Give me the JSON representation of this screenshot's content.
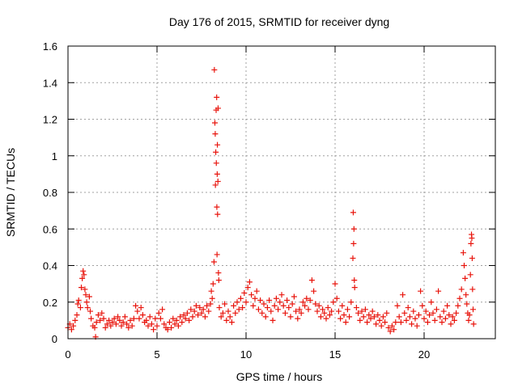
{
  "chart_data": {
    "type": "scatter",
    "title": "Day 176 of 2015, SRMTID for receiver dyng",
    "xlabel": "GPS time / hours",
    "ylabel": "SRMTID / TECUs",
    "xlim": [
      0,
      24
    ],
    "ylim": [
      0,
      1.6
    ],
    "x_ticks": [
      0,
      5,
      10,
      15,
      20
    ],
    "x_tick_labels": [
      "0",
      "5",
      "10",
      "15",
      "20"
    ],
    "y_ticks": [
      0,
      0.2,
      0.4,
      0.6,
      0.8,
      1.0,
      1.2,
      1.4,
      1.6
    ],
    "y_tick_labels": [
      "0",
      "0.2",
      "0.4",
      "0.6",
      "0.8",
      "1",
      "1.2",
      "1.4",
      "1.6"
    ],
    "grid": true,
    "marker": "plus",
    "color": "#e8140c",
    "series": [
      {
        "name": "SRMTID",
        "points": [
          [
            0.0,
            0.06
          ],
          [
            0.1,
            0.08
          ],
          [
            0.2,
            0.05
          ],
          [
            0.3,
            0.07
          ],
          [
            0.4,
            0.1
          ],
          [
            0.5,
            0.13
          ],
          [
            0.55,
            0.19
          ],
          [
            0.6,
            0.21
          ],
          [
            0.7,
            0.17
          ],
          [
            0.75,
            0.28
          ],
          [
            0.8,
            0.33
          ],
          [
            0.85,
            0.37
          ],
          [
            0.9,
            0.35
          ],
          [
            0.95,
            0.27
          ],
          [
            1.0,
            0.24
          ],
          [
            1.05,
            0.2
          ],
          [
            1.1,
            0.17
          ],
          [
            1.2,
            0.23
          ],
          [
            1.25,
            0.15
          ],
          [
            1.3,
            0.11
          ],
          [
            1.4,
            0.07
          ],
          [
            1.5,
            0.06
          ],
          [
            1.55,
            0.01
          ],
          [
            1.6,
            0.09
          ],
          [
            1.7,
            0.13
          ],
          [
            1.8,
            0.1
          ],
          [
            1.9,
            0.14
          ],
          [
            2.0,
            0.11
          ],
          [
            2.1,
            0.06
          ],
          [
            2.2,
            0.08
          ],
          [
            2.3,
            0.1
          ],
          [
            2.4,
            0.07
          ],
          [
            2.5,
            0.09
          ],
          [
            2.6,
            0.11
          ],
          [
            2.7,
            0.08
          ],
          [
            2.8,
            0.12
          ],
          [
            2.9,
            0.1
          ],
          [
            3.0,
            0.07
          ],
          [
            3.1,
            0.09
          ],
          [
            3.2,
            0.12
          ],
          [
            3.3,
            0.08
          ],
          [
            3.4,
            0.06
          ],
          [
            3.5,
            0.1
          ],
          [
            3.6,
            0.07
          ],
          [
            3.7,
            0.11
          ],
          [
            3.8,
            0.18
          ],
          [
            3.9,
            0.15
          ],
          [
            4.0,
            0.11
          ],
          [
            4.1,
            0.17
          ],
          [
            4.2,
            0.13
          ],
          [
            4.3,
            0.09
          ],
          [
            4.4,
            0.1
          ],
          [
            4.5,
            0.07
          ],
          [
            4.6,
            0.12
          ],
          [
            4.7,
            0.08
          ],
          [
            4.8,
            0.05
          ],
          [
            4.9,
            0.11
          ],
          [
            5.0,
            0.07
          ],
          [
            5.1,
            0.14
          ],
          [
            5.2,
            0.11
          ],
          [
            5.3,
            0.16
          ],
          [
            5.4,
            0.08
          ],
          [
            5.5,
            0.06
          ],
          [
            5.6,
            0.05
          ],
          [
            5.7,
            0.09
          ],
          [
            5.8,
            0.06
          ],
          [
            5.9,
            0.11
          ],
          [
            6.0,
            0.08
          ],
          [
            6.1,
            0.1
          ],
          [
            6.2,
            0.07
          ],
          [
            6.3,
            0.12
          ],
          [
            6.4,
            0.09
          ],
          [
            6.5,
            0.13
          ],
          [
            6.6,
            0.11
          ],
          [
            6.7,
            0.14
          ],
          [
            6.8,
            0.1
          ],
          [
            6.9,
            0.16
          ],
          [
            7.0,
            0.12
          ],
          [
            7.1,
            0.15
          ],
          [
            7.2,
            0.18
          ],
          [
            7.3,
            0.13
          ],
          [
            7.4,
            0.17
          ],
          [
            7.5,
            0.14
          ],
          [
            7.6,
            0.16
          ],
          [
            7.7,
            0.12
          ],
          [
            7.8,
            0.18
          ],
          [
            7.9,
            0.15
          ],
          [
            8.0,
            0.19
          ],
          [
            8.05,
            0.26
          ],
          [
            8.1,
            0.22
          ],
          [
            8.15,
            0.3
          ],
          [
            8.2,
            0.42
          ],
          [
            8.22,
            1.47
          ],
          [
            8.25,
            1.18
          ],
          [
            8.27,
            1.12
          ],
          [
            8.28,
            0.84
          ],
          [
            8.3,
            1.02
          ],
          [
            8.32,
            1.25
          ],
          [
            8.33,
            0.96
          ],
          [
            8.35,
            1.32
          ],
          [
            8.36,
            0.72
          ],
          [
            8.37,
            0.46
          ],
          [
            8.38,
            0.9
          ],
          [
            8.39,
            1.06
          ],
          [
            8.4,
            0.68
          ],
          [
            8.42,
            0.86
          ],
          [
            8.43,
            1.26
          ],
          [
            8.45,
            0.36
          ],
          [
            8.47,
            0.32
          ],
          [
            8.5,
            0.17
          ],
          [
            8.6,
            0.12
          ],
          [
            8.7,
            0.14
          ],
          [
            8.8,
            0.19
          ],
          [
            8.9,
            0.1
          ],
          [
            9.0,
            0.15
          ],
          [
            9.1,
            0.12
          ],
          [
            9.2,
            0.09
          ],
          [
            9.3,
            0.18
          ],
          [
            9.4,
            0.14
          ],
          [
            9.5,
            0.2
          ],
          [
            9.6,
            0.16
          ],
          [
            9.7,
            0.22
          ],
          [
            9.8,
            0.17
          ],
          [
            9.9,
            0.25
          ],
          [
            10.0,
            0.2
          ],
          [
            10.1,
            0.28
          ],
          [
            10.2,
            0.31
          ],
          [
            10.3,
            0.24
          ],
          [
            10.4,
            0.18
          ],
          [
            10.5,
            0.22
          ],
          [
            10.6,
            0.26
          ],
          [
            10.7,
            0.16
          ],
          [
            10.8,
            0.21
          ],
          [
            10.9,
            0.14
          ],
          [
            11.0,
            0.19
          ],
          [
            11.1,
            0.12
          ],
          [
            11.2,
            0.17
          ],
          [
            11.3,
            0.21
          ],
          [
            11.4,
            0.15
          ],
          [
            11.5,
            0.1
          ],
          [
            11.6,
            0.18
          ],
          [
            11.7,
            0.22
          ],
          [
            11.8,
            0.16
          ],
          [
            11.9,
            0.2
          ],
          [
            12.0,
            0.24
          ],
          [
            12.1,
            0.18
          ],
          [
            12.2,
            0.14
          ],
          [
            12.3,
            0.21
          ],
          [
            12.4,
            0.17
          ],
          [
            12.5,
            0.12
          ],
          [
            12.6,
            0.19
          ],
          [
            12.7,
            0.23
          ],
          [
            12.8,
            0.15
          ],
          [
            12.9,
            0.11
          ],
          [
            13.0,
            0.16
          ],
          [
            13.1,
            0.14
          ],
          [
            13.2,
            0.2
          ],
          [
            13.3,
            0.18
          ],
          [
            13.4,
            0.22
          ],
          [
            13.5,
            0.16
          ],
          [
            13.6,
            0.21
          ],
          [
            13.7,
            0.32
          ],
          [
            13.8,
            0.26
          ],
          [
            13.9,
            0.19
          ],
          [
            14.0,
            0.15
          ],
          [
            14.1,
            0.18
          ],
          [
            14.2,
            0.12
          ],
          [
            14.3,
            0.16
          ],
          [
            14.4,
            0.14
          ],
          [
            14.5,
            0.11
          ],
          [
            14.6,
            0.17
          ],
          [
            14.7,
            0.13
          ],
          [
            14.8,
            0.15
          ],
          [
            14.9,
            0.2
          ],
          [
            15.0,
            0.3
          ],
          [
            15.1,
            0.22
          ],
          [
            15.2,
            0.15
          ],
          [
            15.3,
            0.11
          ],
          [
            15.4,
            0.18
          ],
          [
            15.5,
            0.13
          ],
          [
            15.6,
            0.09
          ],
          [
            15.7,
            0.16
          ],
          [
            15.8,
            0.12
          ],
          [
            15.9,
            0.2
          ],
          [
            16.0,
            0.44
          ],
          [
            16.02,
            0.69
          ],
          [
            16.04,
            0.52
          ],
          [
            16.06,
            0.6
          ],
          [
            16.08,
            0.32
          ],
          [
            16.1,
            0.28
          ],
          [
            16.2,
            0.17
          ],
          [
            16.3,
            0.14
          ],
          [
            16.4,
            0.1
          ],
          [
            16.5,
            0.15
          ],
          [
            16.6,
            0.12
          ],
          [
            16.7,
            0.16
          ],
          [
            16.8,
            0.09
          ],
          [
            16.9,
            0.13
          ],
          [
            17.0,
            0.11
          ],
          [
            17.1,
            0.15
          ],
          [
            17.2,
            0.12
          ],
          [
            17.3,
            0.08
          ],
          [
            17.4,
            0.13
          ],
          [
            17.5,
            0.1
          ],
          [
            17.6,
            0.07
          ],
          [
            17.7,
            0.12
          ],
          [
            17.8,
            0.09
          ],
          [
            17.9,
            0.14
          ],
          [
            18.0,
            0.06
          ],
          [
            18.1,
            0.04
          ],
          [
            18.2,
            0.07
          ],
          [
            18.3,
            0.05
          ],
          [
            18.4,
            0.09
          ],
          [
            18.5,
            0.18
          ],
          [
            18.6,
            0.12
          ],
          [
            18.7,
            0.09
          ],
          [
            18.8,
            0.24
          ],
          [
            18.9,
            0.14
          ],
          [
            19.0,
            0.1
          ],
          [
            19.1,
            0.17
          ],
          [
            19.2,
            0.12
          ],
          [
            19.3,
            0.08
          ],
          [
            19.4,
            0.15
          ],
          [
            19.5,
            0.11
          ],
          [
            19.6,
            0.07
          ],
          [
            19.7,
            0.13
          ],
          [
            19.8,
            0.26
          ],
          [
            19.9,
            0.18
          ],
          [
            20.0,
            0.11
          ],
          [
            20.1,
            0.15
          ],
          [
            20.2,
            0.09
          ],
          [
            20.3,
            0.13
          ],
          [
            20.4,
            0.2
          ],
          [
            20.5,
            0.14
          ],
          [
            20.6,
            0.1
          ],
          [
            20.7,
            0.16
          ],
          [
            20.8,
            0.26
          ],
          [
            20.9,
            0.12
          ],
          [
            21.0,
            0.09
          ],
          [
            21.1,
            0.15
          ],
          [
            21.2,
            0.11
          ],
          [
            21.3,
            0.18
          ],
          [
            21.4,
            0.13
          ],
          [
            21.5,
            0.08
          ],
          [
            21.6,
            0.12
          ],
          [
            21.7,
            0.1
          ],
          [
            21.8,
            0.14
          ],
          [
            21.9,
            0.18
          ],
          [
            22.0,
            0.22
          ],
          [
            22.1,
            0.27
          ],
          [
            22.2,
            0.47
          ],
          [
            22.25,
            0.4
          ],
          [
            22.3,
            0.33
          ],
          [
            22.35,
            0.24
          ],
          [
            22.4,
            0.19
          ],
          [
            22.45,
            0.14
          ],
          [
            22.5,
            0.1
          ],
          [
            22.55,
            0.13
          ],
          [
            22.6,
            0.35
          ],
          [
            22.63,
            0.52
          ],
          [
            22.66,
            0.57
          ],
          [
            22.68,
            0.55
          ],
          [
            22.7,
            0.44
          ],
          [
            22.72,
            0.27
          ],
          [
            22.75,
            0.16
          ],
          [
            22.78,
            0.08
          ]
        ]
      }
    ]
  }
}
